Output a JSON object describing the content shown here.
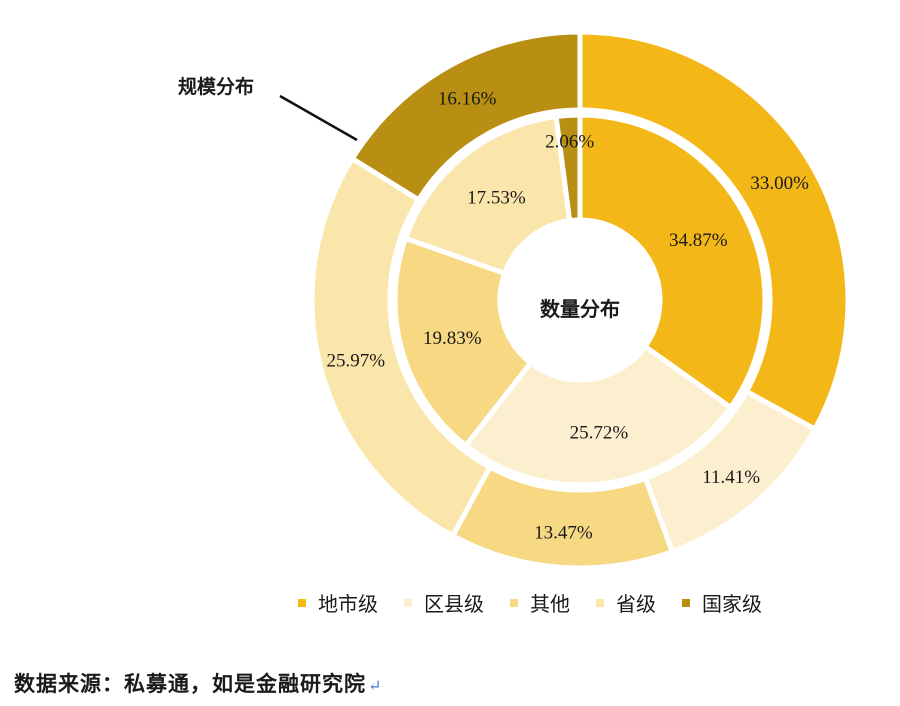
{
  "chart_data": {
    "type": "pie",
    "subtype": "nested-donut",
    "categories": [
      "地市级",
      "区县级",
      "其他",
      "省级",
      "国家级"
    ],
    "colors": [
      "#f3b817",
      "#fcefcf",
      "#f7d983",
      "#fae6ab",
      "#b88f12"
    ],
    "series": [
      {
        "name": "数量分布",
        "values": [
          34.87,
          25.72,
          19.83,
          17.53,
          2.06
        ],
        "labels": [
          "34.87%",
          "25.72%",
          "19.83%",
          "17.53%",
          "2.06%"
        ]
      },
      {
        "name": "规模分布",
        "values": [
          33.0,
          11.41,
          13.47,
          25.97,
          16.16
        ],
        "labels": [
          "33.00%",
          "11.41%",
          "13.47%",
          "25.97%",
          "16.16%"
        ]
      }
    ],
    "legend_position": "bottom"
  },
  "annotation": {
    "outer_ring_label": "规模分布"
  },
  "source": {
    "text": "数据来源：私募通，如是金融研究院",
    "return_mark": "↵"
  }
}
